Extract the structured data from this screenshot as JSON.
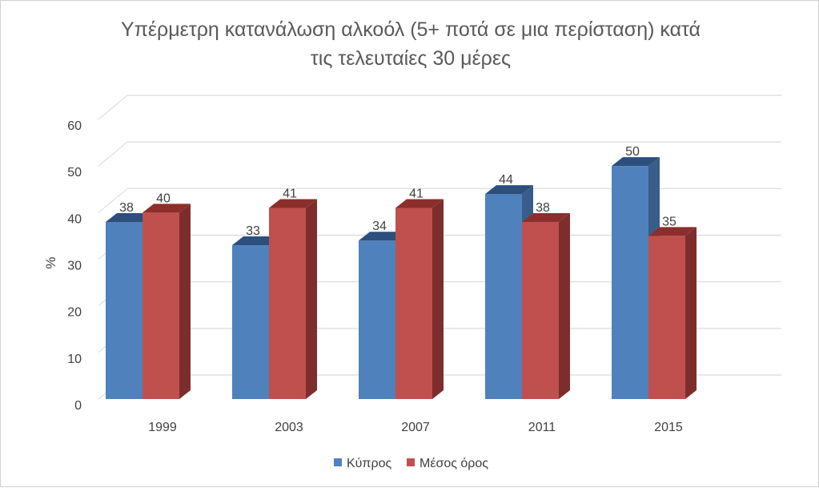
{
  "chart_data": {
    "type": "bar",
    "title": "Υπέρμετρη κατανάλωση αλκοόλ (5+ ποτά σε μια περίσταση) κατά τις τελευταίες 30 μέρες",
    "title_lines": [
      "Υπέρμετρη κατανάλωση αλκοόλ (5+ ποτά σε μια περίσταση) κατά",
      "τις τελευταίες 30 μέρες"
    ],
    "xlabel": "",
    "ylabel": "%",
    "ylim": [
      0,
      60
    ],
    "yticks": [
      0,
      10,
      20,
      30,
      40,
      50,
      60
    ],
    "categories": [
      "1999",
      "2003",
      "2007",
      "2011",
      "2015"
    ],
    "series": [
      {
        "name": "Κύπρος",
        "values": [
          38,
          33,
          34,
          44,
          50
        ],
        "color": "#4f81bd",
        "top_color": "#2c4f7c",
        "side_color": "#385d8a"
      },
      {
        "name": "Μέσος όρος",
        "values": [
          40,
          41,
          41,
          38,
          35
        ],
        "color": "#c0504d",
        "top_color": "#8c2f2c",
        "side_color": "#7d2e2c"
      }
    ],
    "grid": true,
    "legend_position": "bottom",
    "style": "3d-clustered-column"
  }
}
